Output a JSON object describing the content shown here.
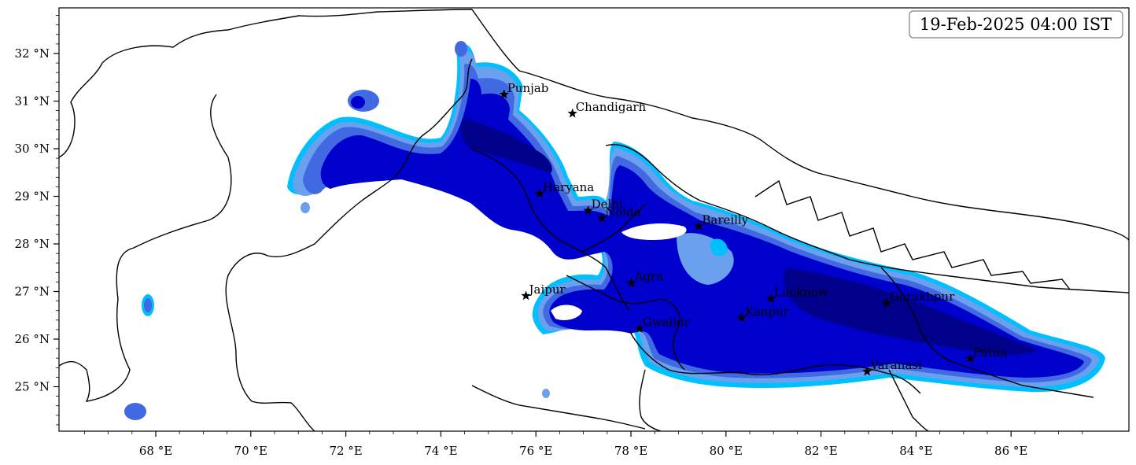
{
  "timestamp": "19-Feb-2025 04:00 IST",
  "axes": {
    "longitude_ticks": [
      {
        "value": 68,
        "label": "68 °E"
      },
      {
        "value": 70,
        "label": "70 °E"
      },
      {
        "value": 72,
        "label": "72 °E"
      },
      {
        "value": 74,
        "label": "74 °E"
      },
      {
        "value": 76,
        "label": "76 °E"
      },
      {
        "value": 78,
        "label": "78 °E"
      },
      {
        "value": 80,
        "label": "80 °E"
      },
      {
        "value": 82,
        "label": "82 °E"
      },
      {
        "value": 84,
        "label": "84 °E"
      },
      {
        "value": 86,
        "label": "86 °E"
      }
    ],
    "latitude_ticks": [
      {
        "value": 32,
        "label": "32 °N"
      },
      {
        "value": 31,
        "label": "31 °N"
      },
      {
        "value": 30,
        "label": "30 °N"
      },
      {
        "value": 29,
        "label": "29 °N"
      },
      {
        "value": 28,
        "label": "28 °N"
      },
      {
        "value": 27,
        "label": "27 °N"
      },
      {
        "value": 26,
        "label": "26 °N"
      },
      {
        "value": 25,
        "label": "25 °N"
      }
    ],
    "lon_range": [
      66,
      88.6
    ],
    "lat_range": [
      24.05,
      33
    ]
  },
  "cities": [
    {
      "name": "Punjab",
      "lon": 75.33,
      "lat": 31.14
    },
    {
      "name": "Chandigarh",
      "lon": 76.77,
      "lat": 30.74
    },
    {
      "name": "Haryana",
      "lon": 76.08,
      "lat": 29.06
    },
    {
      "name": "Delhi",
      "lon": 77.1,
      "lat": 28.7
    },
    {
      "name": "Noida",
      "lon": 77.39,
      "lat": 28.54
    },
    {
      "name": "Bareilly",
      "lon": 79.43,
      "lat": 28.37
    },
    {
      "name": "Agra",
      "lon": 78.01,
      "lat": 27.18
    },
    {
      "name": "Jaipur",
      "lon": 75.79,
      "lat": 26.91
    },
    {
      "name": "Lucknow",
      "lon": 80.95,
      "lat": 26.85
    },
    {
      "name": "Gorakhpur",
      "lon": 83.38,
      "lat": 26.76
    },
    {
      "name": "Kanpur",
      "lon": 80.33,
      "lat": 26.45
    },
    {
      "name": "Gwalior",
      "lon": 78.18,
      "lat": 26.22
    },
    {
      "name": "Patna",
      "lon": 85.14,
      "lat": 25.59
    },
    {
      "name": "Varanasi",
      "lon": 82.97,
      "lat": 25.32
    }
  ],
  "colors": {
    "level_1": "#a6d8e8",
    "level_2": "#00bfff",
    "level_3": "#6aa0ee",
    "level_4": "#4169e1",
    "level_5": "#0000cd",
    "level_6": "#00008b",
    "boundary": "#000000"
  }
}
